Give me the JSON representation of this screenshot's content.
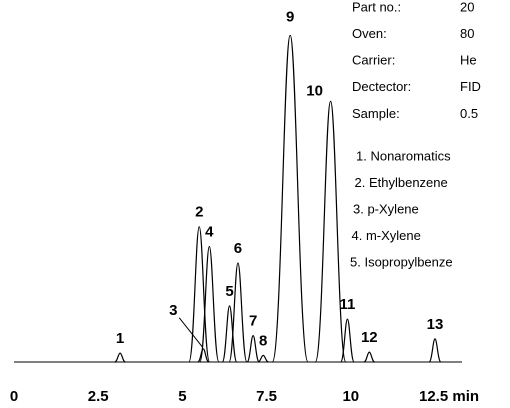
{
  "chart_data": {
    "type": "chromatogram",
    "xlim": [
      0,
      12.5
    ],
    "xticks": [
      0,
      2.5,
      5,
      7.5,
      10,
      {
        "value": 12.5,
        "label": "12.5 min"
      }
    ],
    "ylim": [
      0,
      100
    ],
    "color": "#000000",
    "peaks": [
      {
        "label": "1",
        "x": 3.15,
        "height": 2.7
      },
      {
        "label": "2",
        "x": 5.5,
        "height": 41
      },
      {
        "label": "3",
        "x": 5.62,
        "height": 4
      },
      {
        "label": "4",
        "x": 5.8,
        "height": 35
      },
      {
        "label": "5",
        "x": 6.4,
        "height": 17
      },
      {
        "label": "6",
        "x": 6.65,
        "height": 30
      },
      {
        "label": "7",
        "x": 7.1,
        "height": 8
      },
      {
        "label": "8",
        "x": 7.4,
        "height": 2
      },
      {
        "label": "9",
        "x": 8.2,
        "height": 99
      },
      {
        "label": "10",
        "x": 9.4,
        "height": 79
      },
      {
        "label": "11",
        "x": 9.9,
        "height": 13
      },
      {
        "label": "12",
        "x": 10.55,
        "height": 3
      },
      {
        "label": "13",
        "x": 12.5,
        "height": 7
      }
    ],
    "info": [
      {
        "label": "Part no.:",
        "value": "20"
      },
      {
        "label": "Oven:",
        "value": "80"
      },
      {
        "label": "Carrier:",
        "value": "He"
      },
      {
        "label": "Dectector:",
        "value": "FID"
      },
      {
        "label": "Sample:",
        "value": "0.5"
      }
    ],
    "legend": [
      "1. Nonaromatics",
      "2. Ethylbenzene",
      "3. p-Xylene",
      "4. m-Xylene",
      "5. Isopropylbenze"
    ]
  }
}
